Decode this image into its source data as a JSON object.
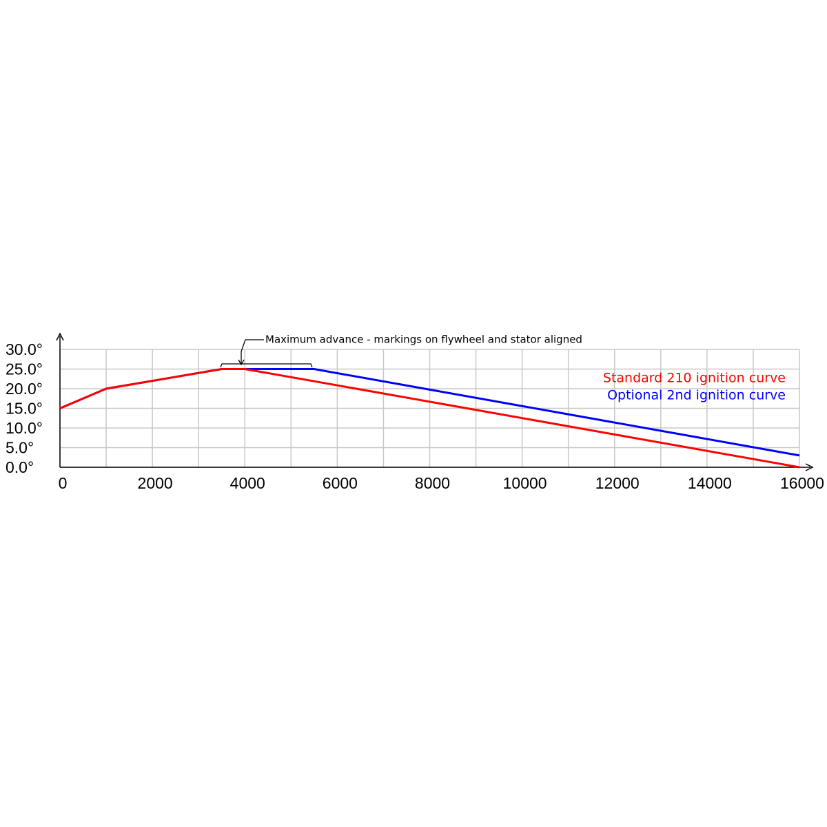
{
  "chart_data": {
    "type": "line",
    "annotation": "Maximum advance - markings on flywheel and stator aligned",
    "x": [
      0,
      1000,
      3500,
      4000,
      5500,
      16000
    ],
    "series": [
      {
        "name": "Optional 2nd ignition curve",
        "color": "#0000ff",
        "values": [
          15,
          20,
          25,
          25,
          25,
          3
        ]
      },
      {
        "name": "Standard 210 ignition curve",
        "color": "#ff0000",
        "values": [
          15,
          20,
          25,
          25,
          21.9,
          0
        ]
      }
    ],
    "xlim": [
      0,
      16000
    ],
    "xticks": [
      0,
      2000,
      4000,
      6000,
      8000,
      10000,
      12000,
      14000,
      16000
    ],
    "xminor_ticks": [
      1000,
      3000,
      5000,
      7000,
      9000,
      11000,
      13000,
      15000
    ],
    "ylim": [
      0,
      30
    ],
    "yticks": [
      {
        "value": 0,
        "label": "0.0°"
      },
      {
        "value": 5,
        "label": "5.0°"
      },
      {
        "value": 10,
        "label": "10.0°"
      },
      {
        "value": 15,
        "label": "15.0°"
      },
      {
        "value": 20,
        "label": "20.0°"
      },
      {
        "value": 25,
        "label": "25.0°"
      },
      {
        "value": 30,
        "label": "30.0°"
      }
    ],
    "grid": true,
    "legend": "upper right"
  }
}
